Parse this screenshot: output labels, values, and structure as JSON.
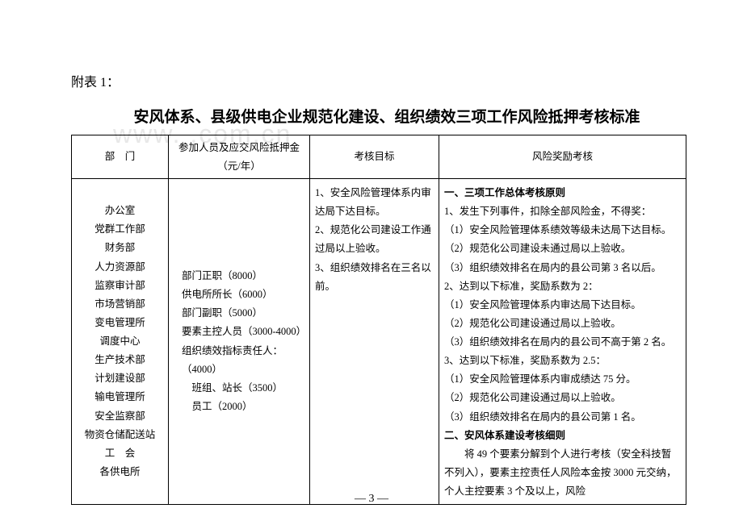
{
  "watermark": "www.     .com.cn",
  "appendix_label": "附表 1：",
  "title": "安风体系、县级供电企业规范化建设、组织绩效三项工作风险抵押考核标准",
  "headers": {
    "h1": "部　门",
    "h2": "参加人员及应交风险抵押金（元/年）",
    "h3": "考核目标",
    "h4": "风险奖励考核"
  },
  "departments": [
    "办公室",
    "党群工作部",
    "财务部",
    "人力资源部",
    "监察审计部",
    "市场营销部",
    "变电管理所",
    "调度中心",
    "生产技术部",
    "计划建设部",
    "输电管理所",
    "安全监察部",
    "物资仓储配送站",
    "工　会",
    "各供电所"
  ],
  "deposits": [
    "部门正职（8000）",
    "供电所所长（6000）",
    "部门副职（5000）",
    "要素主控人员（3000-4000）",
    "组织绩效指标责任人：（4000）",
    "　班组、站长（3500）",
    "　员工（2000）"
  ],
  "targets": [
    "1、安全风险管理体系内审达局下达目标。",
    "2、规范化公司建设工作通过局以上验收。",
    "3、组织绩效排名在三名以前。"
  ],
  "rewards": [
    {
      "cls": "bold",
      "text": "一、三项工作总体考核原则"
    },
    {
      "cls": "",
      "text": "1、发生下列事件，扣除全部风险金，不得奖："
    },
    {
      "cls": "",
      "text": "（1）安全风险管理体系绩效等级未达局下达目标。"
    },
    {
      "cls": "",
      "text": "（2）规范化公司建设未通过局以上验收。"
    },
    {
      "cls": "",
      "text": "（3）组织绩效排名在局内的县公司第 3 名以后。"
    },
    {
      "cls": "",
      "text": "2、达到以下标准，奖励系数为 2："
    },
    {
      "cls": "",
      "text": "（1）安全风险管理体系内审达局下达目标。"
    },
    {
      "cls": "",
      "text": "（2）规范化公司建设通过局以上验收。"
    },
    {
      "cls": "",
      "text": "（3）组织绩效排名在局内的县公司不高于第 2 名。"
    },
    {
      "cls": "",
      "text": "3、达到以下标准，奖励系数为 2.5："
    },
    {
      "cls": "",
      "text": "（1）安全风险管理体系内审成绩达 75 分。"
    },
    {
      "cls": "",
      "text": "（2）规范化公司建设通过局以上验收。"
    },
    {
      "cls": "",
      "text": "（3）组织绩效排名在局内的县公司第 1 名。"
    },
    {
      "cls": "bold",
      "text": "二、安风体系建设考核细则"
    },
    {
      "cls": "indent",
      "text": "将 49 个要素分解到个人进行考核（安全科技暂不列入），要素主控责任人风险本金按 3000 元交纳，个人主控要素 3 个及以上，风险"
    }
  ],
  "page_number": "— 3 —"
}
